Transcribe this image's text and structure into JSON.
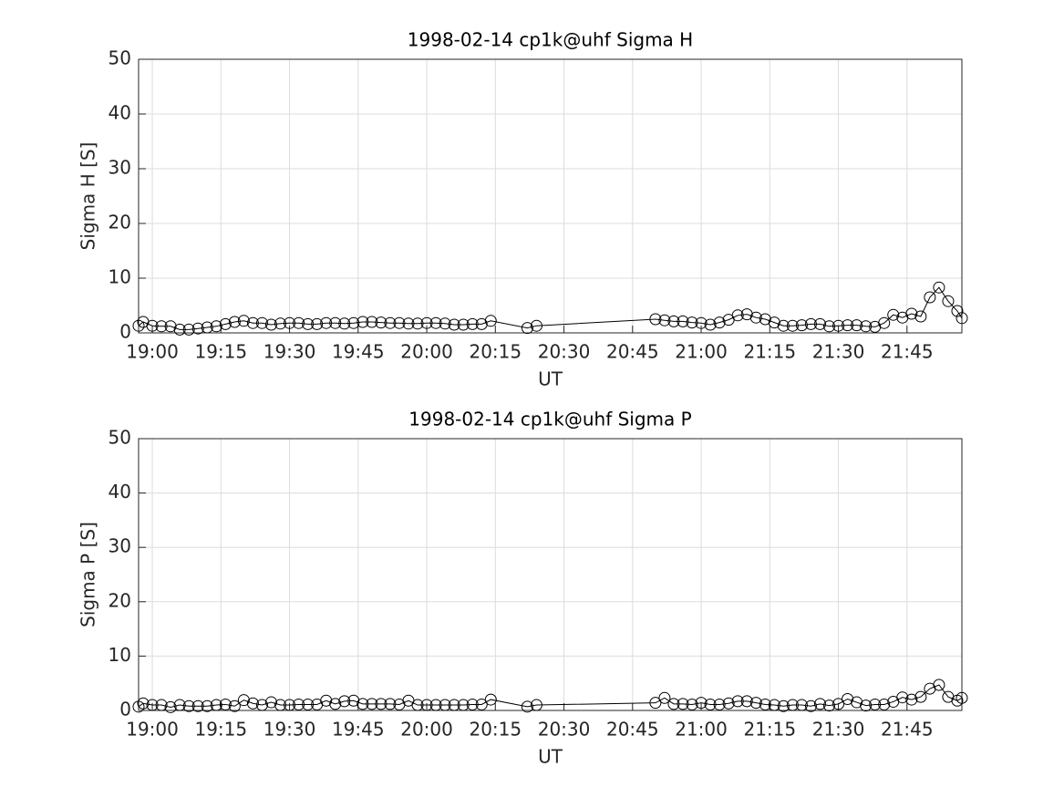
{
  "chart_data": [
    {
      "type": "line",
      "title": "1998-02-14  cp1k@uhf Sigma H",
      "x_label": "UT",
      "y_label": "Sigma H [S]",
      "x": [
        "18:57",
        "18:58",
        "19:00",
        "19:02",
        "19:04",
        "19:06",
        "19:08",
        "19:10",
        "19:12",
        "19:14",
        "19:16",
        "19:18",
        "19:20",
        "19:22",
        "19:24",
        "19:26",
        "19:28",
        "19:30",
        "19:32",
        "19:34",
        "19:36",
        "19:38",
        "19:40",
        "19:42",
        "19:44",
        "19:46",
        "19:48",
        "19:50",
        "19:52",
        "19:54",
        "19:56",
        "19:58",
        "20:00",
        "20:02",
        "20:04",
        "20:06",
        "20:08",
        "20:10",
        "20:12",
        "20:14",
        "20:22",
        "20:24",
        "20:50",
        "20:52",
        "20:54",
        "20:56",
        "20:58",
        "21:00",
        "21:02",
        "21:04",
        "21:06",
        "21:08",
        "21:10",
        "21:12",
        "21:14",
        "21:16",
        "21:18",
        "21:20",
        "21:22",
        "21:24",
        "21:26",
        "21:28",
        "21:30",
        "21:32",
        "21:34",
        "21:36",
        "21:38",
        "21:40",
        "21:42",
        "21:44",
        "21:46",
        "21:48",
        "21:50",
        "21:52",
        "21:54",
        "21:56",
        "21:57"
      ],
      "series": [
        {
          "color": "#000000",
          "values": [
            1.3,
            2,
            1.3,
            1.2,
            1.2,
            0.6,
            0.6,
            0.8,
            1,
            1.2,
            1.6,
            2,
            2.2,
            1.8,
            1.8,
            1.5,
            1.7,
            1.8,
            1.8,
            1.6,
            1.6,
            1.8,
            1.8,
            1.7,
            1.8,
            2,
            2,
            1.9,
            1.8,
            1.8,
            1.7,
            1.7,
            1.8,
            1.8,
            1.7,
            1.5,
            1.5,
            1.6,
            1.6,
            2.2,
            0.9,
            1.3,
            2.5,
            2.3,
            2.1,
            2.1,
            1.9,
            1.8,
            1.5,
            1.9,
            2.4,
            3.2,
            3.4,
            2.8,
            2.5,
            1.9,
            1.3,
            1.3,
            1.4,
            1.6,
            1.6,
            1.2,
            1.3,
            1.4,
            1.4,
            1.2,
            1.1,
            1.8,
            3.3,
            2.8,
            3.5,
            3,
            6.5,
            8.3,
            5.8,
            4,
            2.7
          ]
        }
      ],
      "xlim": [
        "18:57",
        "21:57"
      ],
      "xticks": [
        "19:00",
        "19:15",
        "19:30",
        "19:45",
        "20:00",
        "20:15",
        "20:30",
        "20:45",
        "21:00",
        "21:15",
        "21:30",
        "21:45"
      ],
      "ylim": [
        0,
        50
      ],
      "yticks": [
        0,
        10,
        20,
        30,
        40,
        50
      ],
      "grid": true
    },
    {
      "type": "line",
      "title": "1998-02-14  cp1k@uhf Sigma P",
      "x_label": "UT",
      "y_label": "Sigma P [S]",
      "x": [
        "18:57",
        "18:58",
        "19:00",
        "19:02",
        "19:04",
        "19:06",
        "19:08",
        "19:10",
        "19:12",
        "19:14",
        "19:16",
        "19:18",
        "19:20",
        "19:22",
        "19:24",
        "19:26",
        "19:28",
        "19:30",
        "19:32",
        "19:34",
        "19:36",
        "19:38",
        "19:40",
        "19:42",
        "19:44",
        "19:46",
        "19:48",
        "19:50",
        "19:52",
        "19:54",
        "19:56",
        "19:58",
        "20:00",
        "20:02",
        "20:04",
        "20:06",
        "20:08",
        "20:10",
        "20:12",
        "20:14",
        "20:22",
        "20:24",
        "20:50",
        "20:52",
        "20:54",
        "20:56",
        "20:58",
        "21:00",
        "21:02",
        "21:04",
        "21:06",
        "21:08",
        "21:10",
        "21:12",
        "21:14",
        "21:16",
        "21:18",
        "21:20",
        "21:22",
        "21:24",
        "21:26",
        "21:28",
        "21:30",
        "21:32",
        "21:34",
        "21:36",
        "21:38",
        "21:40",
        "21:42",
        "21:44",
        "21:46",
        "21:48",
        "21:50",
        "21:52",
        "21:54",
        "21:56",
        "21:57"
      ],
      "series": [
        {
          "color": "#000000",
          "values": [
            0.7,
            1.3,
            1,
            1,
            0.6,
            1,
            0.8,
            0.8,
            0.8,
            1,
            1.1,
            0.8,
            1.9,
            1.3,
            1,
            1.5,
            1,
            1,
            1.1,
            1.1,
            1.1,
            1.8,
            1.2,
            1.7,
            1.8,
            1.2,
            1.2,
            1.2,
            1.2,
            1.1,
            1.8,
            1,
            1,
            1,
            1,
            1,
            1,
            1.1,
            1.1,
            2,
            0.7,
            1,
            1.4,
            2.3,
            1.2,
            1.2,
            1.1,
            1.4,
            1.1,
            1.1,
            1.3,
            1.7,
            1.7,
            1.4,
            1.1,
            1,
            0.8,
            1,
            1,
            0.8,
            1.2,
            0.9,
            1.2,
            2.1,
            1.5,
            0.9,
            1.1,
            1.1,
            1.6,
            2.4,
            2,
            2.5,
            4,
            4.7,
            2.5,
            1.8,
            2.3
          ]
        }
      ],
      "xlim": [
        "18:57",
        "21:57"
      ],
      "xticks": [
        "19:00",
        "19:15",
        "19:30",
        "19:45",
        "20:00",
        "20:15",
        "20:30",
        "20:45",
        "21:00",
        "21:15",
        "21:30",
        "21:45"
      ],
      "ylim": [
        0,
        50
      ],
      "yticks": [
        0,
        10,
        20,
        30,
        40,
        50
      ],
      "grid": true
    }
  ]
}
